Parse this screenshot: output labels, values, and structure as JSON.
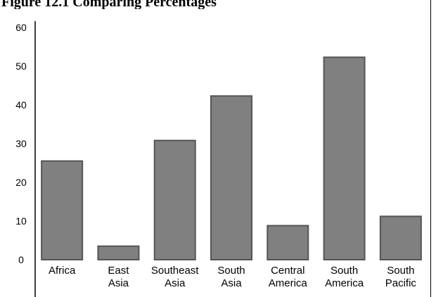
{
  "page": {
    "title": "Figure 12.1 Comparing Percentages"
  },
  "chart_data": {
    "type": "bar",
    "title": "",
    "xlabel": "",
    "ylabel": "",
    "categories": [
      "Africa",
      "East Asia",
      "Southeast Asia",
      "South Asia",
      "Central America",
      "South America",
      "South Pacific"
    ],
    "category_lines": [
      [
        "Africa"
      ],
      [
        "East",
        "Asia"
      ],
      [
        "Southeast",
        "Asia"
      ],
      [
        "South",
        "Asia"
      ],
      [
        "Central",
        "America"
      ],
      [
        "South",
        "America"
      ],
      [
        "South",
        "Pacific"
      ]
    ],
    "values": [
      25.5,
      3.5,
      30.8,
      42.3,
      8.8,
      52.3,
      11.2
    ],
    "ylim": [
      0,
      60
    ],
    "yticks": [
      0,
      10,
      20,
      30,
      40,
      50,
      60
    ],
    "grid": false,
    "legend": "none",
    "colors": {
      "bar_fill": "#808080",
      "bar_stroke": "#555555",
      "axis": "#000000"
    }
  }
}
